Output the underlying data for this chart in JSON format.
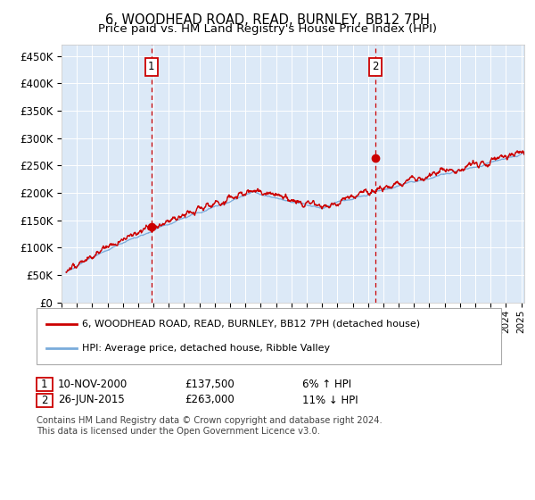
{
  "title": "6, WOODHEAD ROAD, READ, BURNLEY, BB12 7PH",
  "subtitle": "Price paid vs. HM Land Registry's House Price Index (HPI)",
  "ylabel_ticks": [
    "£0",
    "£50K",
    "£100K",
    "£150K",
    "£200K",
    "£250K",
    "£300K",
    "£350K",
    "£400K",
    "£450K"
  ],
  "ytick_values": [
    0,
    50000,
    100000,
    150000,
    200000,
    250000,
    300000,
    350000,
    400000,
    450000
  ],
  "ylim": [
    0,
    470000
  ],
  "xlim_start": 1995.3,
  "xlim_end": 2025.2,
  "background_color": "#dce9f7",
  "red_line_color": "#cc0000",
  "blue_line_color": "#7aabdb",
  "transaction1_year": 2000.87,
  "transaction1_price": 137500,
  "transaction2_year": 2015.49,
  "transaction2_price": 263000,
  "legend_line1": "6, WOODHEAD ROAD, READ, BURNLEY, BB12 7PH (detached house)",
  "legend_line2": "HPI: Average price, detached house, Ribble Valley",
  "annotation1_date": "10-NOV-2000",
  "annotation1_price": "£137,500",
  "annotation1_hpi": "6% ↑ HPI",
  "annotation2_date": "26-JUN-2015",
  "annotation2_price": "£263,000",
  "annotation2_hpi": "11% ↓ HPI",
  "footnote": "Contains HM Land Registry data © Crown copyright and database right 2024.\nThis data is licensed under the Open Government Licence v3.0."
}
